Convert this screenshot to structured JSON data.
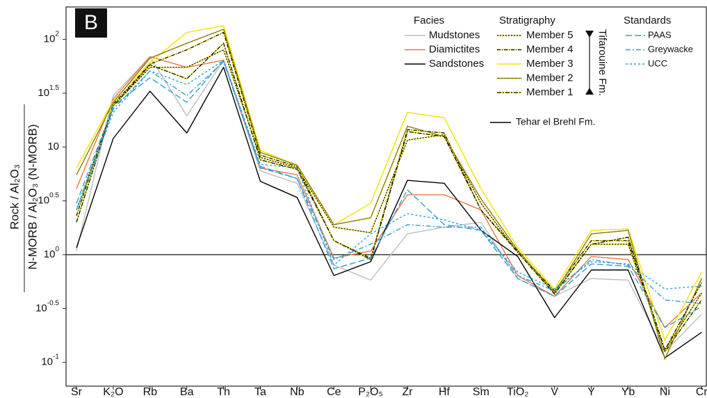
{
  "chart_data": {
    "type": "line",
    "panel_label": "B",
    "y_label_top": "Rock / Al₂O₃",
    "y_label_bottom": "N‑MORB / Al₂O₃ (N‑MORB)",
    "log_scale_y": true,
    "categories": [
      "Sr",
      "K₂O",
      "Rb",
      "Ba",
      "Th",
      "Ta",
      "Nb",
      "Ce",
      "P₂O₅",
      "Zr",
      "Hf",
      "Sm",
      "TiO₂",
      "V",
      "Y",
      "Yb",
      "Ni",
      "Cr"
    ],
    "ylim": [
      0.06,
      200
    ],
    "yticks": [
      {
        "value": 0.1,
        "label": "10^-1"
      },
      {
        "value": 0.316,
        "label": "10^-0.5"
      },
      {
        "value": 1,
        "label": "10^0"
      },
      {
        "value": 3.16,
        "label": "10^0.5"
      },
      10,
      {
        "value": 31.6,
        "label": "10^1.5"
      },
      {
        "value": 100,
        "label": "10^2"
      }
    ],
    "reference_line": 1,
    "legend_groups": [
      "Facies",
      "Stratigraphy",
      "Standards"
    ],
    "formation_label": "Tifarouine Fm.",
    "annotation": "Tehar el Brehl Fm.",
    "series": [
      {
        "name": "Mudstones",
        "group": "Facies",
        "color": "#bdbdbd",
        "dash": "none",
        "values": [
          1.08,
          30,
          69,
          19.5,
          64,
          6,
          4.6,
          0.8,
          0.58,
          1.56,
          1.8,
          2,
          0.6,
          0.41,
          0.6,
          0.58,
          0.125,
          0.28
        ]
      },
      {
        "name": "Diamictites",
        "group": "Facies",
        "color": "#e8764a",
        "dash": "none",
        "values": [
          4.1,
          28,
          69,
          55,
          64,
          6.4,
          5.5,
          0.93,
          1.08,
          3.6,
          3.6,
          2.6,
          0.64,
          0.41,
          0.96,
          0.9,
          0.21,
          0.44
        ]
      },
      {
        "name": "Sandstones",
        "group": "Facies",
        "color": "#000000",
        "dash": "none",
        "values": [
          1.16,
          12,
          33,
          13.5,
          55,
          4.8,
          3.4,
          0.64,
          0.86,
          4.9,
          4.6,
          1.68,
          0.96,
          0.26,
          0.72,
          0.72,
          0.11,
          0.19
        ]
      },
      {
        "name": "Member 5",
        "group": "Stratigraphy",
        "color": "#f5e100",
        "dash": "2 2",
        "values": [
          2.6,
          24,
          55,
          55,
          80,
          8,
          6.4,
          1.8,
          1.6,
          11.6,
          13,
          3,
          1.05,
          0.44,
          1.25,
          1.25,
          0.13,
          0.44
        ]
      },
      {
        "name": "Member 4",
        "group": "Stratigraphy",
        "color": "#f5e100",
        "dash": "5 2 1 2",
        "values": [
          2.3,
          25,
          59,
          80,
          116,
          8.4,
          6.6,
          1.35,
          0.93,
          14.5,
          13.5,
          2.6,
          1.08,
          0.46,
          1.35,
          1.35,
          0.125,
          0.38
        ]
      },
      {
        "name": "Member 3",
        "group": "Stratigraphy",
        "color": "#f5e100",
        "dash": "none",
        "values": [
          6.4,
          27,
          61,
          116,
          134,
          9.3,
          6.7,
          1.9,
          3,
          21,
          18.7,
          4.1,
          1.16,
          0.48,
          1.68,
          1.73,
          0.16,
          0.69
        ]
      },
      {
        "name": "Member 2",
        "group": "Stratigraphy",
        "color": "#f5e100",
        "dash": "1 1",
        "values": [
          5.5,
          26,
          67,
          92,
          124,
          8.9,
          6.8,
          1.9,
          2.2,
          15.6,
          12.5,
          3.3,
          1.1,
          0.44,
          1.56,
          1.68,
          0.108,
          0.6
        ]
      },
      {
        "name": "Member 1",
        "group": "Stratigraphy",
        "color": "#f5e100",
        "dash": "6 2 2 2",
        "values": [
          2,
          24,
          58,
          43,
          92,
          7.6,
          6.2,
          1.35,
          0.9,
          13.9,
          12.5,
          2.6,
          1.05,
          0.43,
          1.25,
          1.45,
          0.13,
          0.55
        ]
      },
      {
        "name": "PAAS",
        "group": "Standards",
        "color": "#2a9fd6",
        "dash": "9 4",
        "values": [
          3,
          24,
          44,
          26,
          64,
          6.6,
          5.1,
          0.74,
          0.93,
          4,
          1.9,
          1.68,
          0.6,
          0.41,
          0.82,
          0.78,
          0.21,
          0.33
        ]
      },
      {
        "name": "Greywacke",
        "group": "Standards",
        "color": "#2a9fd6",
        "dash": "7 3 2 3",
        "values": [
          2.6,
          22.5,
          51,
          30,
          62,
          6.4,
          5.1,
          0.9,
          1.25,
          1.9,
          1.8,
          1.8,
          0.64,
          0.46,
          0.9,
          0.8,
          0.38,
          0.35
        ]
      },
      {
        "name": "UCC",
        "group": "Standards",
        "color": "#2a9fd6",
        "dash": "3 3",
        "values": [
          2.6,
          21,
          51,
          38,
          64,
          6.9,
          6.4,
          0.8,
          1.56,
          2.4,
          2.1,
          1.68,
          0.69,
          0.48,
          0.86,
          0.82,
          0.48,
          0.51
        ]
      }
    ]
  }
}
